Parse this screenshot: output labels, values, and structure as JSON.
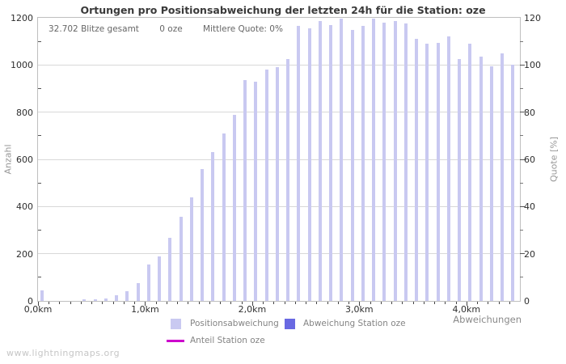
{
  "title": "Ortungen pro Positionsabweichung der letzten 24h für die Station: oze",
  "stats": {
    "total": "32.702 Blitze gesamt",
    "station": "0 oze",
    "quote": "Mittlere Quote: 0%"
  },
  "watermark": "www.lightningmaps.org",
  "legend": [
    {
      "label": "Positionsabweichung",
      "color": "#c9c9f1",
      "type": "square"
    },
    {
      "label": "Abweichung Station oze",
      "color": "#6969e2",
      "type": "square"
    },
    {
      "label": "Anteil Station oze",
      "color": "#cc00cc",
      "type": "line"
    }
  ],
  "chart_data": {
    "type": "bar",
    "title": "Ortungen pro Positionsabweichung der letzten 24h für die Station: oze",
    "xlabel": "Abweichungen",
    "ylabel_left": "Anzahl",
    "ylabel_right": "Quote [%]",
    "ylim_left": [
      0,
      1200
    ],
    "ylim_right": [
      0,
      120
    ],
    "yticks_left": [
      0,
      200,
      400,
      600,
      800,
      1000,
      1200
    ],
    "yticks_right": [
      0,
      20,
      40,
      60,
      80,
      100,
      120
    ],
    "xtick_labels": [
      "0,0km",
      "1,0km",
      "2,0km",
      "3,0km",
      "4,0km"
    ],
    "grid": true,
    "legend_position": "bottom",
    "bar_color": "#c9c9f1",
    "categories": [
      "0,0km",
      "0,1km",
      "0,2km",
      "0,3km",
      "0,4km",
      "0,5km",
      "0,6km",
      "0,7km",
      "0,8km",
      "0,9km",
      "1,0km",
      "1,1km",
      "1,2km",
      "1,3km",
      "1,4km",
      "1,5km",
      "1,6km",
      "1,7km",
      "1,8km",
      "1,9km",
      "2,0km",
      "2,1km",
      "2,2km",
      "2,3km",
      "2,4km",
      "2,5km",
      "2,6km",
      "2,7km",
      "2,8km",
      "2,9km",
      "3,0km",
      "3,1km",
      "3,2km",
      "3,3km",
      "3,4km",
      "3,5km",
      "3,6km",
      "3,7km",
      "3,8km",
      "3,9km",
      "4,0km",
      "4,1km",
      "4,2km",
      "4,3km",
      "4,4km"
    ],
    "series": [
      {
        "name": "Positionsabweichung",
        "axis": "left",
        "values": [
          45,
          0,
          0,
          0,
          6,
          8,
          11,
          23,
          40,
          75,
          155,
          190,
          268,
          355,
          440,
          560,
          630,
          710,
          790,
          935,
          930,
          980,
          990,
          1025,
          1165,
          1155,
          1185,
          1170,
          1195,
          1150,
          1165,
          1195,
          1180,
          1185,
          1175,
          1110,
          1090,
          1095,
          1120,
          1025,
          1090,
          1035,
          995,
          1050,
          1000
        ]
      },
      {
        "name": "Abweichung Station oze",
        "axis": "left",
        "values": [
          0,
          0,
          0,
          0,
          0,
          0,
          0,
          0,
          0,
          0,
          0,
          0,
          0,
          0,
          0,
          0,
          0,
          0,
          0,
          0,
          0,
          0,
          0,
          0,
          0,
          0,
          0,
          0,
          0,
          0,
          0,
          0,
          0,
          0,
          0,
          0,
          0,
          0,
          0,
          0,
          0,
          0,
          0,
          0,
          0
        ]
      },
      {
        "name": "Anteil Station oze",
        "axis": "right",
        "unit": "%",
        "values": [
          0,
          0,
          0,
          0,
          0,
          0,
          0,
          0,
          0,
          0,
          0,
          0,
          0,
          0,
          0,
          0,
          0,
          0,
          0,
          0,
          0,
          0,
          0,
          0,
          0,
          0,
          0,
          0,
          0,
          0,
          0,
          0,
          0,
          0,
          0,
          0,
          0,
          0,
          0,
          0,
          0,
          0,
          0,
          0,
          0
        ]
      }
    ]
  }
}
